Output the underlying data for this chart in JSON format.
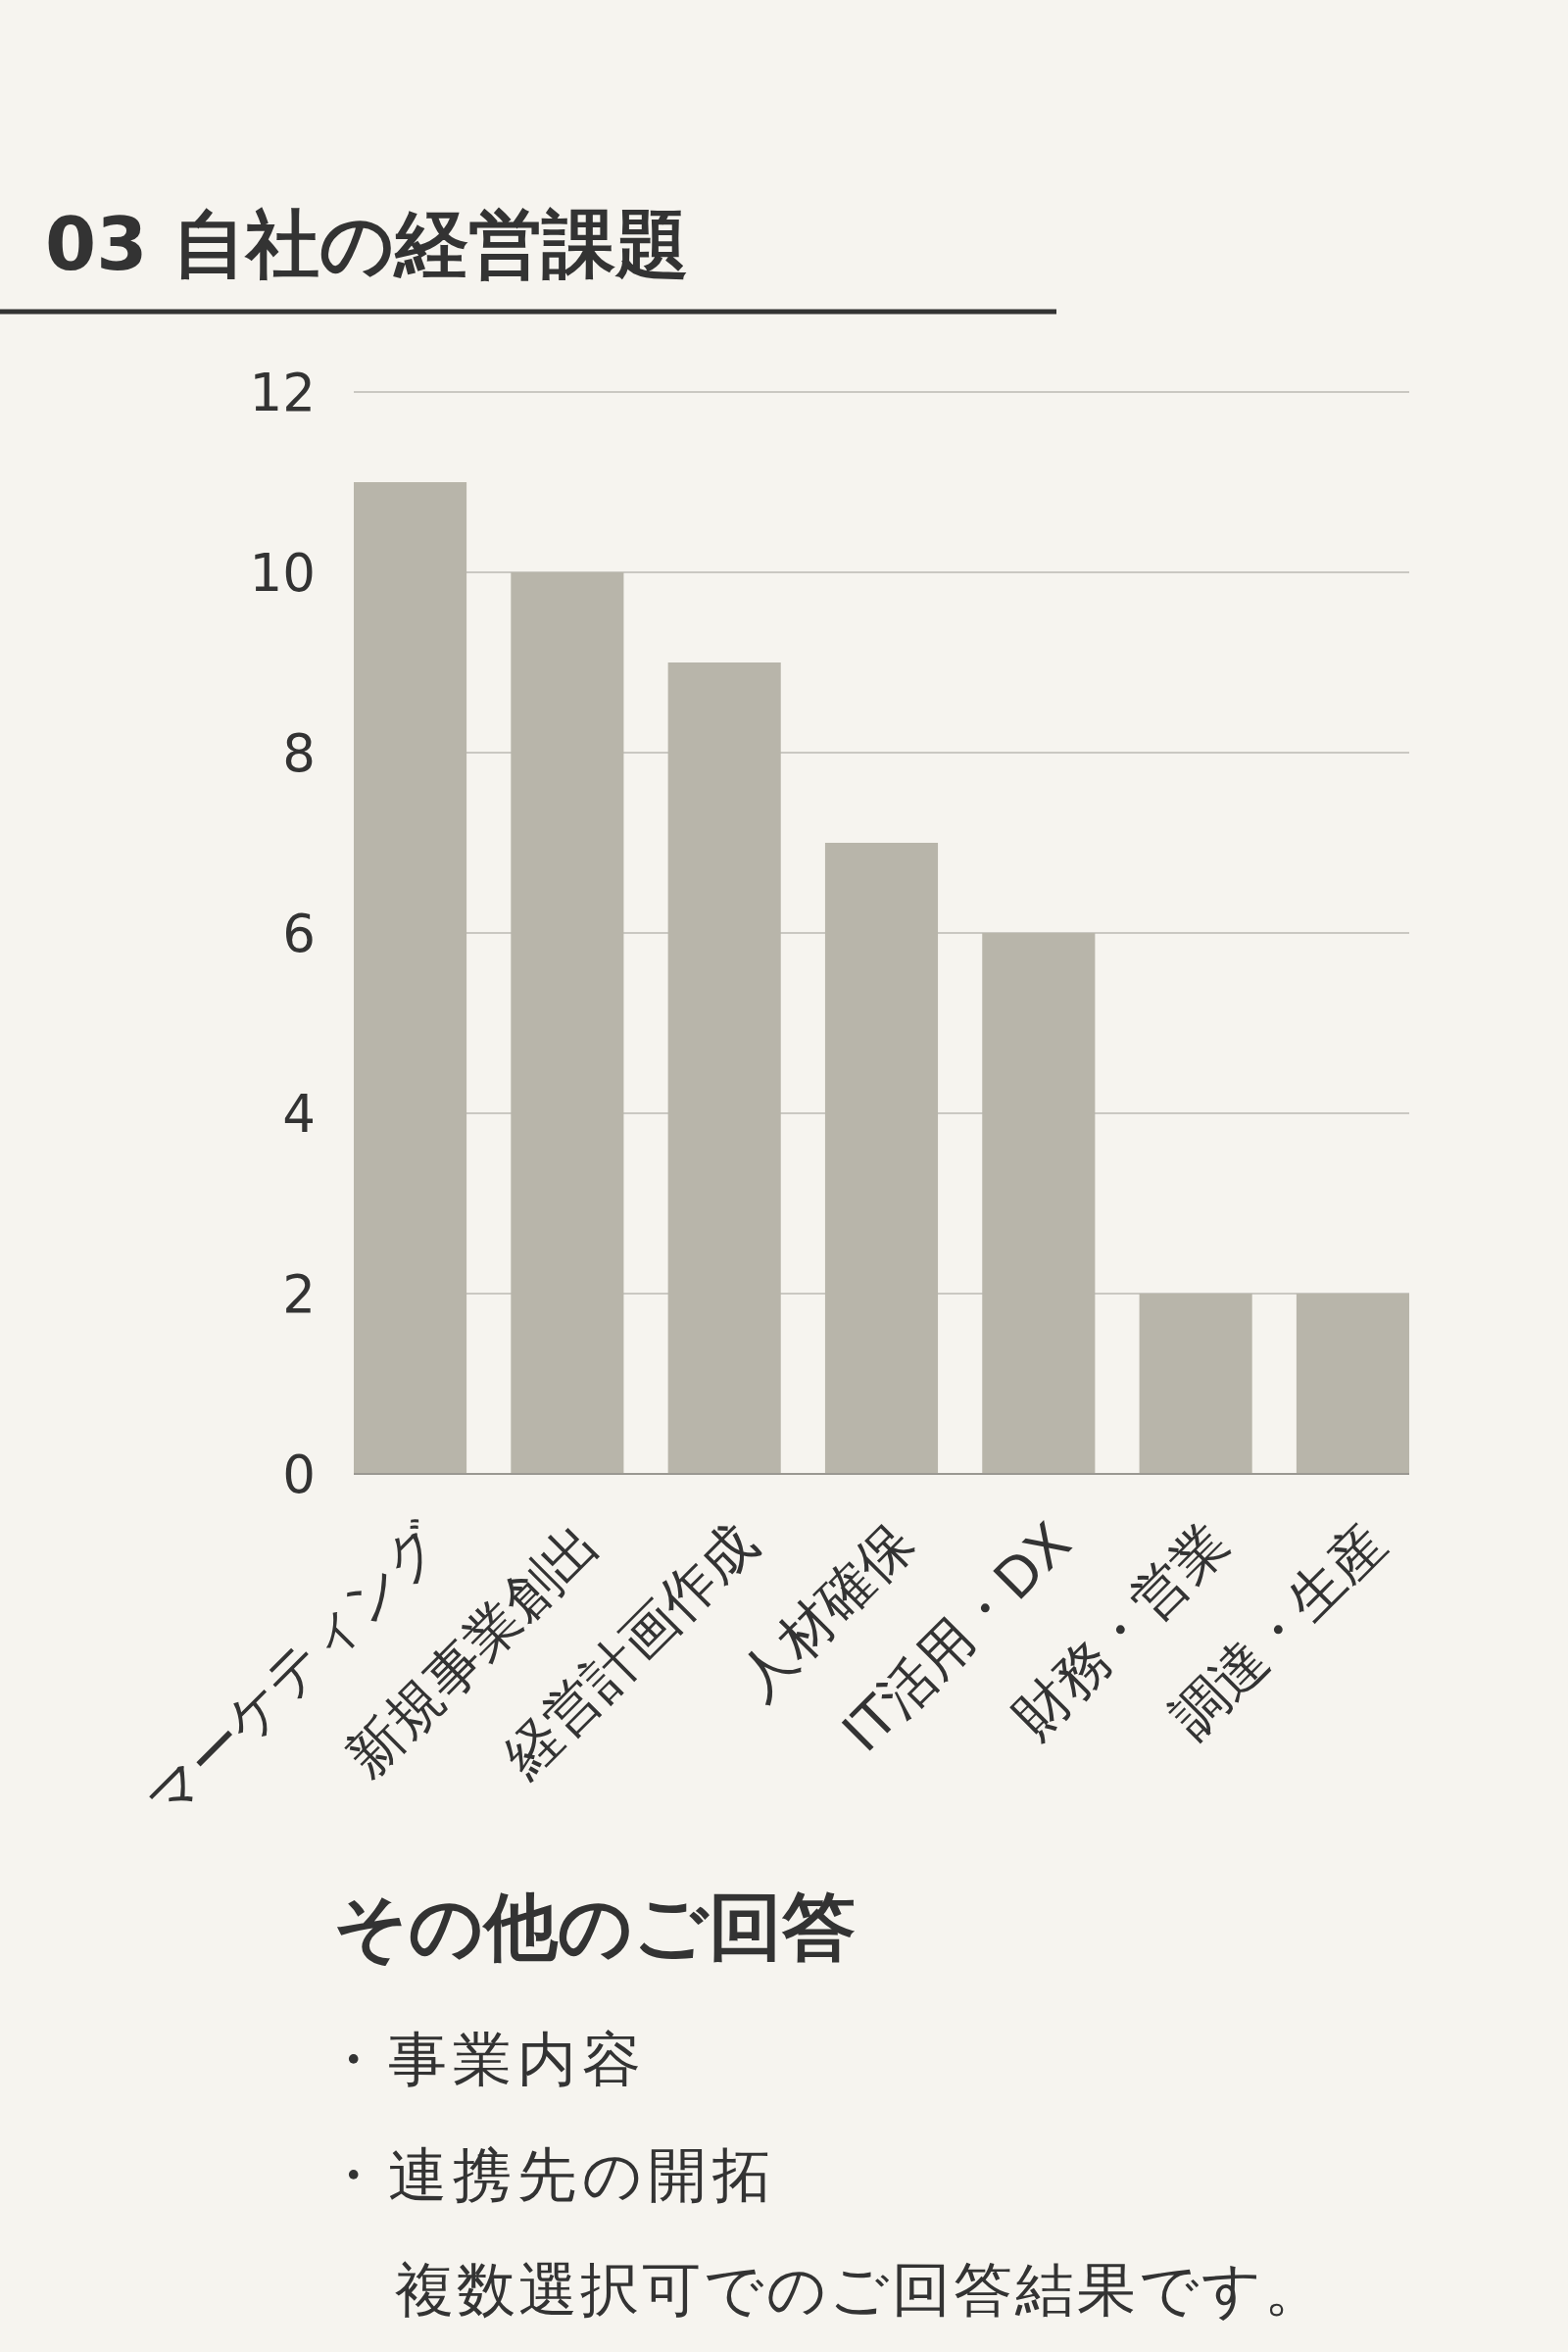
{
  "chart_data": {
    "type": "bar",
    "title": "03 自社の経営課題",
    "categories": [
      "マーケティング",
      "新規事業創出",
      "経営計画作成",
      "人材確保",
      "IT活用・DX",
      "財務・営業",
      "調達・生産"
    ],
    "values": [
      11,
      10,
      9,
      7,
      6,
      2,
      2
    ],
    "color": "#b8b5aa",
    "ylim": [
      0,
      12
    ],
    "yticks": [
      0,
      2,
      4,
      6,
      8,
      10,
      12
    ],
    "grid": "y",
    "annotations": [
      "その他のご回答",
      "・事業内容",
      "・連携先の開拓",
      "複数選択可でのご回答結果です。"
    ]
  }
}
